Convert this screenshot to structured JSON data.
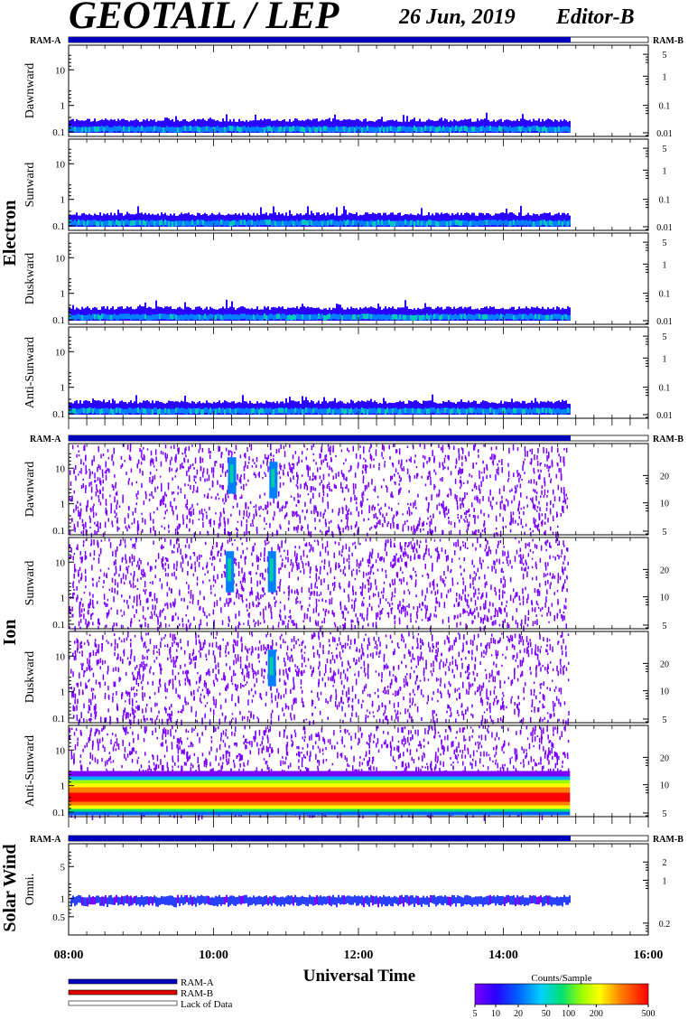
{
  "header": {
    "title": "GEOTAIL / LEP",
    "date": "26 Jun, 2019",
    "editor": "Editor-B"
  },
  "status_bar": {
    "ram_a": "RAM-A",
    "ram_b": "RAM-B"
  },
  "groups": {
    "electron": "Electron",
    "ion": "Ion",
    "solar_wind": "Solar Wind"
  },
  "colors": {
    "ram_a": "#0000c0",
    "ram_b": "#e00000",
    "spectrum_low": "#7a00ff",
    "spectrum_mid": "#00b8ff",
    "spectrum_high": "#ff0000"
  },
  "chart_data": [
    {
      "type": "heatmap",
      "group": "Electron",
      "panels": [
        {
          "label": "Dawnward",
          "left_ticks": [
            "10",
            "1",
            "0.1"
          ],
          "right_ticks": [
            "5",
            "1",
            "0.1",
            "0.01"
          ]
        },
        {
          "label": "Sunward",
          "left_ticks": [
            "10",
            "1",
            "0.1"
          ],
          "right_ticks": [
            "5",
            "1",
            "0.1",
            "0.01"
          ]
        },
        {
          "label": "Duskward",
          "left_ticks": [
            "10",
            "1",
            "0.1"
          ],
          "right_ticks": [
            "5",
            "1",
            "0.1",
            "0.01"
          ]
        },
        {
          "label": "Anti-Sunward",
          "left_ticks": [
            "10",
            "1",
            "0.1"
          ],
          "right_ticks": [
            "5",
            "1",
            "0.1",
            "0.01"
          ]
        }
      ]
    },
    {
      "type": "heatmap",
      "group": "Ion",
      "panels": [
        {
          "label": "Dawnward",
          "left_ticks": [
            "10",
            "1",
            "0.1"
          ],
          "right_ticks": [
            "20",
            "10",
            "5"
          ]
        },
        {
          "label": "Sunward",
          "left_ticks": [
            "10",
            "1",
            "0.1"
          ],
          "right_ticks": [
            "20",
            "10",
            "5"
          ]
        },
        {
          "label": "Duskward",
          "left_ticks": [
            "10",
            "1",
            "0.1"
          ],
          "right_ticks": [
            "20",
            "10",
            "5"
          ]
        },
        {
          "label": "Anti-Sunward",
          "left_ticks": [
            "10",
            "1",
            "0.1"
          ],
          "right_ticks": [
            "20",
            "10",
            "5"
          ]
        }
      ]
    },
    {
      "type": "heatmap",
      "group": "Solar Wind",
      "panels": [
        {
          "label": "Omni.",
          "left_ticks": [
            "5",
            "1",
            "0.5"
          ],
          "right_ticks": [
            "2",
            "1",
            "0.2"
          ]
        }
      ]
    }
  ],
  "xaxis": {
    "label": "Universal Time",
    "ticks": [
      "08:00",
      "10:00",
      "12:00",
      "14:00",
      "16:00"
    ],
    "range_hours": [
      8,
      16
    ],
    "data_end_hour": 14.92
  },
  "legend": {
    "items": [
      "RAM-A",
      "RAM-B",
      "Lack of Data"
    ],
    "colorbar_title": "Counts/Sample",
    "colorbar_ticks": [
      "5",
      "10",
      "20",
      "50",
      "100",
      "200",
      "500"
    ]
  }
}
